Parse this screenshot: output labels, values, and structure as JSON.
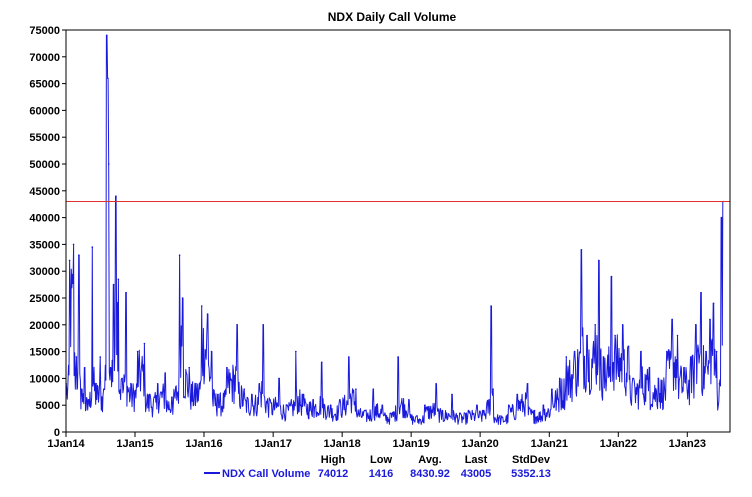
{
  "chart_data": {
    "type": "line",
    "title": "NDX Daily Call Volume",
    "xlabel": "",
    "ylabel": "",
    "ylim": [
      0,
      75000
    ],
    "yticks": [
      0,
      5000,
      10000,
      15000,
      20000,
      25000,
      30000,
      35000,
      40000,
      45000,
      50000,
      55000,
      60000,
      65000,
      70000,
      75000
    ],
    "xlim": [
      "2014-01-01",
      "2023-08-15"
    ],
    "xticks": [
      {
        "date": "2014-01-01",
        "label": "1Jan14"
      },
      {
        "date": "2015-01-01",
        "label": "1Jan15"
      },
      {
        "date": "2016-01-01",
        "label": "1Jan16"
      },
      {
        "date": "2017-01-01",
        "label": "1Jan17"
      },
      {
        "date": "2018-01-01",
        "label": "1Jan18"
      },
      {
        "date": "2019-01-01",
        "label": "1Jan19"
      },
      {
        "date": "2020-01-01",
        "label": "1Jan20"
      },
      {
        "date": "2021-01-01",
        "label": "1Jan21"
      },
      {
        "date": "2022-01-01",
        "label": "1Jan22"
      },
      {
        "date": "2023-01-01",
        "label": "1Jan23"
      }
    ],
    "grid": false,
    "reference_line": {
      "value": 43005,
      "color": "#e03030"
    },
    "series": [
      {
        "name": "NDX Call Volume",
        "color": "#1a1adc",
        "points": [
          [
            "2014-01-02",
            9000
          ],
          [
            "2014-01-20",
            32000
          ],
          [
            "2014-02-10",
            35000
          ],
          [
            "2014-02-25",
            14000
          ],
          [
            "2014-03-10",
            33000
          ],
          [
            "2014-03-25",
            8000
          ],
          [
            "2014-04-10",
            12000
          ],
          [
            "2014-05-01",
            6000
          ],
          [
            "2014-05-20",
            34500
          ],
          [
            "2014-06-10",
            9000
          ],
          [
            "2014-07-01",
            14000
          ],
          [
            "2014-07-20",
            8000
          ],
          [
            "2014-08-05",
            74012
          ],
          [
            "2014-08-10",
            66000
          ],
          [
            "2014-08-15",
            50000
          ],
          [
            "2014-08-25",
            12000
          ],
          [
            "2014-09-10",
            27500
          ],
          [
            "2014-09-22",
            44000
          ],
          [
            "2014-10-05",
            28500
          ],
          [
            "2014-10-25",
            10000
          ],
          [
            "2014-11-15",
            26000
          ],
          [
            "2014-12-10",
            9000
          ],
          [
            "2015-01-15",
            15000
          ],
          [
            "2015-02-20",
            16500
          ],
          [
            "2015-03-20",
            7000
          ],
          [
            "2015-05-01",
            9000
          ],
          [
            "2015-06-10",
            11000
          ],
          [
            "2015-07-15",
            6500
          ],
          [
            "2015-08-25",
            33000
          ],
          [
            "2015-09-10",
            25000
          ],
          [
            "2015-10-15",
            12000
          ],
          [
            "2015-11-20",
            9000
          ],
          [
            "2015-12-20",
            23500
          ],
          [
            "2016-01-20",
            22000
          ],
          [
            "2016-02-10",
            15000
          ],
          [
            "2016-03-15",
            7000
          ],
          [
            "2016-05-01",
            12000
          ],
          [
            "2016-06-24",
            20000
          ],
          [
            "2016-08-01",
            8000
          ],
          [
            "2016-09-10",
            7000
          ],
          [
            "2016-10-20",
            9000
          ],
          [
            "2016-11-09",
            20000
          ],
          [
            "2016-12-15",
            6000
          ],
          [
            "2017-02-01",
            10000
          ],
          [
            "2017-03-15",
            5000
          ],
          [
            "2017-05-01",
            15000
          ],
          [
            "2017-06-10",
            7000
          ],
          [
            "2017-08-01",
            6000
          ],
          [
            "2017-09-15",
            13000
          ],
          [
            "2017-11-01",
            5000
          ],
          [
            "2017-12-20",
            6000
          ],
          [
            "2018-02-05",
            14000
          ],
          [
            "2018-03-15",
            8000
          ],
          [
            "2018-05-01",
            4000
          ],
          [
            "2018-06-15",
            8000
          ],
          [
            "2018-08-01",
            5000
          ],
          [
            "2018-09-15",
            3500
          ],
          [
            "2018-10-24",
            14000
          ],
          [
            "2018-12-20",
            6000
          ],
          [
            "2019-02-01",
            3000
          ],
          [
            "2019-03-15",
            5000
          ],
          [
            "2019-05-13",
            9000
          ],
          [
            "2019-06-15",
            4000
          ],
          [
            "2019-08-05",
            7000
          ],
          [
            "2019-09-15",
            3500
          ],
          [
            "2019-11-01",
            4000
          ],
          [
            "2019-12-15",
            5000
          ],
          [
            "2020-01-20",
            4000
          ],
          [
            "2020-02-28",
            23500
          ],
          [
            "2020-03-10",
            8000
          ],
          [
            "2020-04-15",
            3000
          ],
          [
            "2020-06-01",
            5000
          ],
          [
            "2020-07-15",
            7000
          ],
          [
            "2020-09-08",
            9000
          ],
          [
            "2020-10-15",
            4000
          ],
          [
            "2020-12-01",
            5000
          ],
          [
            "2021-01-15",
            8000
          ],
          [
            "2021-02-25",
            10000
          ],
          [
            "2021-04-01",
            14000
          ],
          [
            "2021-05-15",
            15000
          ],
          [
            "2021-06-20",
            34000
          ],
          [
            "2021-07-20",
            18000
          ],
          [
            "2021-09-01",
            20000
          ],
          [
            "2021-09-20",
            32000
          ],
          [
            "2021-10-15",
            14000
          ],
          [
            "2021-11-26",
            29000
          ],
          [
            "2021-12-15",
            18000
          ],
          [
            "2022-01-24",
            20000
          ],
          [
            "2022-02-24",
            16000
          ],
          [
            "2022-03-20",
            10000
          ],
          [
            "2022-05-01",
            15000
          ],
          [
            "2022-06-15",
            12000
          ],
          [
            "2022-08-01",
            10000
          ],
          [
            "2022-09-15",
            15000
          ],
          [
            "2022-10-13",
            21000
          ],
          [
            "2022-11-10",
            18000
          ],
          [
            "2022-12-15",
            12000
          ],
          [
            "2023-01-20",
            14000
          ],
          [
            "2023-02-15",
            20000
          ],
          [
            "2023-03-15",
            26000
          ],
          [
            "2023-04-10",
            15000
          ],
          [
            "2023-05-01",
            21000
          ],
          [
            "2023-05-20",
            24000
          ],
          [
            "2023-06-05",
            15000
          ],
          [
            "2023-06-20",
            9000
          ],
          [
            "2023-07-01",
            40000
          ],
          [
            "2023-07-10",
            43005
          ]
        ]
      }
    ],
    "summary": {
      "headers": [
        "High",
        "Low",
        "Avg.",
        "Last",
        "StdDev"
      ],
      "values": [
        "74012",
        "1416",
        "8430.92",
        "43005",
        "5352.13"
      ]
    },
    "legend_placement": "bottom"
  }
}
